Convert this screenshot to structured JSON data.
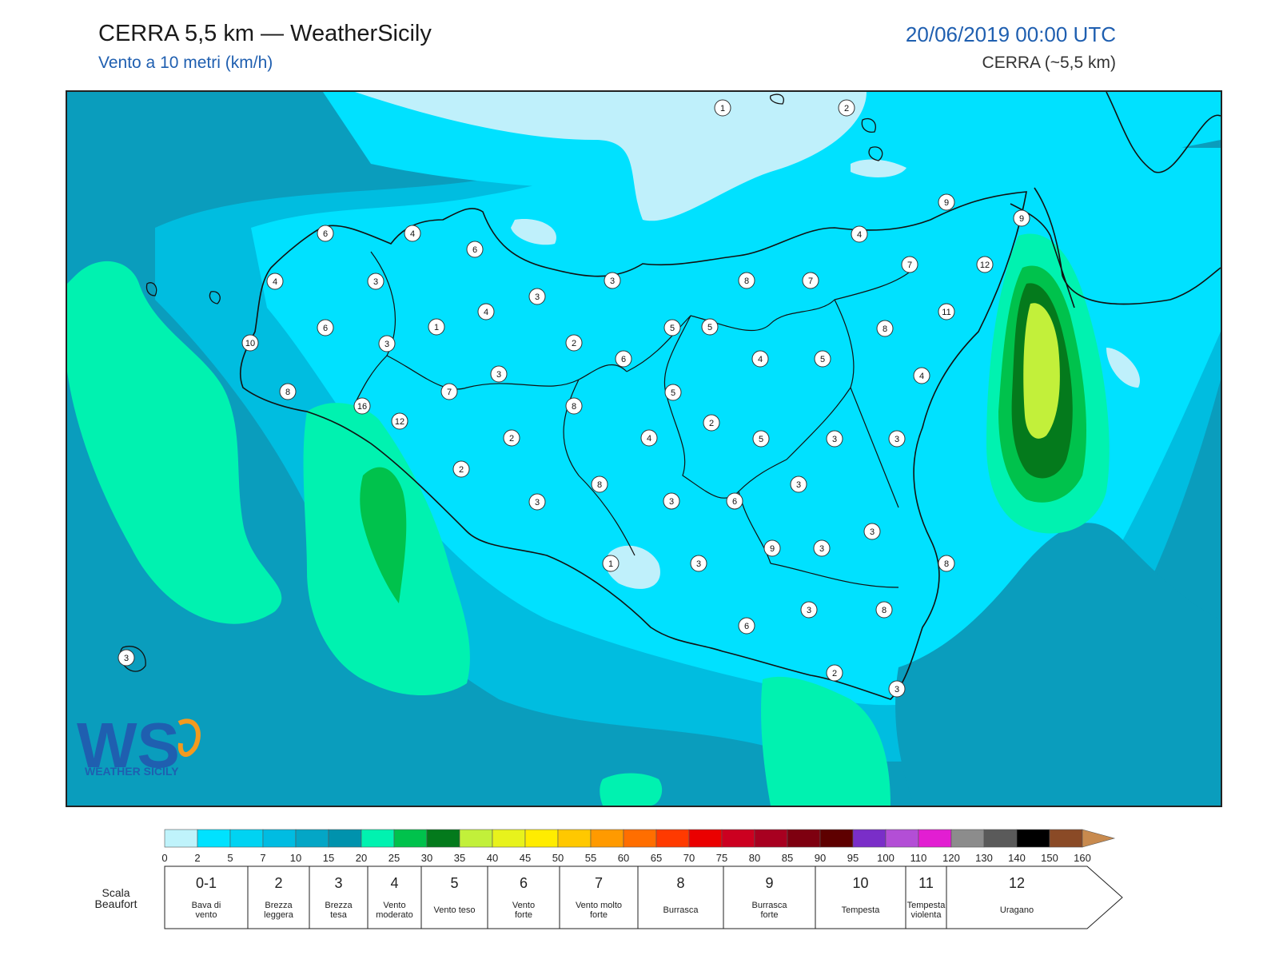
{
  "header": {
    "title": "CERRA 5,5 km — WeatherSicily",
    "subtitle": "Vento a 10 metri (km/h)",
    "datetime": "20/06/2019 00:00 UTC",
    "model": "CERRA (~5,5 km)"
  },
  "logo": {
    "letters": "WS",
    "text": "WEATHER SICILY"
  },
  "colors": {
    "accent_blue": "#1f5fb0",
    "background_sea": "#06a2c2",
    "light": "#bff0fb",
    "cyan": "#00e1ff",
    "mid": "#00c7ea",
    "green_light": "#00f2b0",
    "green": "#00c24c",
    "green_dark": "#047a1c",
    "yellow_green": "#c2f03a"
  },
  "colorbar": {
    "ticks": [
      "0",
      "2",
      "5",
      "7",
      "10",
      "15",
      "20",
      "25",
      "30",
      "35",
      "40",
      "45",
      "50",
      "55",
      "60",
      "65",
      "70",
      "75",
      "80",
      "85",
      "90",
      "95",
      "100",
      "110",
      "120",
      "130",
      "140",
      "150",
      "160"
    ],
    "colors": [
      "#bff3fb",
      "#00e2ff",
      "#00d3f2",
      "#00bce2",
      "#04a6c6",
      "#0092ad",
      "#00f2b0",
      "#00c24c",
      "#047a1c",
      "#c2f03a",
      "#e8f21c",
      "#ffec00",
      "#ffc800",
      "#ff9a00",
      "#ff6e00",
      "#ff3a00",
      "#ea0000",
      "#cc0020",
      "#a80020",
      "#7e0010",
      "#5e0000",
      "#7a2ec8",
      "#b34ed6",
      "#e21ed2",
      "#8c8c8c",
      "#5a5a5a",
      "#000000",
      "#8a4a26",
      "#c88a4e"
    ]
  },
  "beaufort": {
    "label": "Scala Beaufort",
    "classes": [
      {
        "num": "0-1",
        "name": "Bava di vento"
      },
      {
        "num": "2",
        "name": "Brezza leggera"
      },
      {
        "num": "3",
        "name": "Brezza tesa"
      },
      {
        "num": "4",
        "name": "Vento moderato"
      },
      {
        "num": "5",
        "name": "Vento teso"
      },
      {
        "num": "6",
        "name": "Vento forte"
      },
      {
        "num": "7",
        "name": "Vento molto forte"
      },
      {
        "num": "8",
        "name": "Burrasca"
      },
      {
        "num": "9",
        "name": "Burrasca forte"
      },
      {
        "num": "10",
        "name": "Tempesta"
      },
      {
        "num": "11",
        "name": "Tempesta violenta"
      },
      {
        "num": "12",
        "name": "Uragano"
      }
    ]
  },
  "wind_labels": [
    "1",
    "2",
    "9",
    "9",
    "6",
    "4",
    "6",
    "4",
    "3",
    "3",
    "3",
    "12",
    "7",
    "8",
    "7",
    "4",
    "11",
    "6",
    "1",
    "4",
    "10",
    "2",
    "3",
    "4",
    "5",
    "6",
    "5",
    "4",
    "5",
    "8",
    "5",
    "7",
    "3",
    "8",
    "16",
    "12",
    "8",
    "2",
    "4",
    "2",
    "5",
    "3",
    "3",
    "2",
    "8",
    "3",
    "3",
    "3",
    "6",
    "3",
    "9",
    "3",
    "8",
    "8",
    "1",
    "3",
    "6",
    "3",
    "2",
    "3",
    "3"
  ]
}
